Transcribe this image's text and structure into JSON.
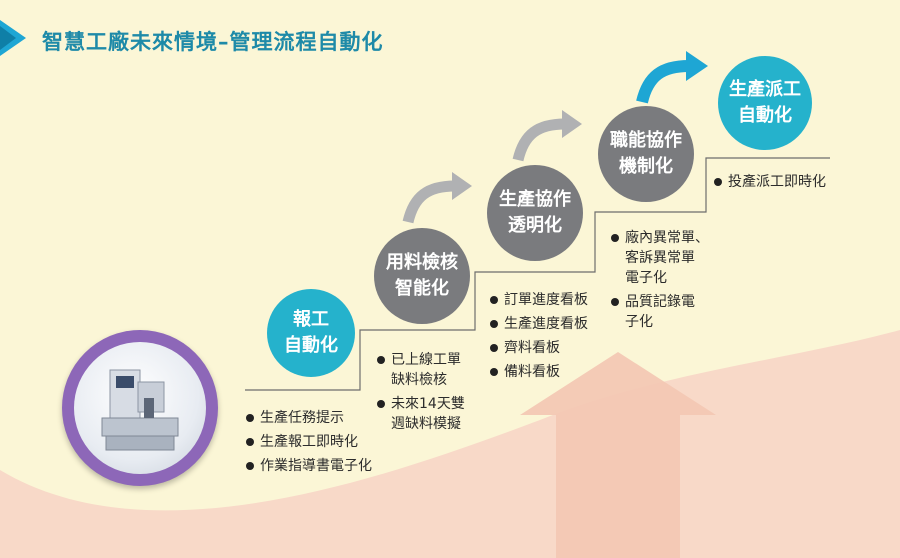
{
  "title": "智慧工廠未來情境–管理流程自動化",
  "colors": {
    "background": "#fbf6d6",
    "wave": "#f8d9c8",
    "title_text": "#1e8aa8",
    "step_gray": "#7a7b7e",
    "step_cyan": "#25b2cc",
    "arrow_gray": "#b0b1b3",
    "arrow_blue": "#1ea6d4",
    "machine_ring": "#8d67b8"
  },
  "icons": [
    "title-chevron-icon",
    "cnc-machine-icon"
  ],
  "steps": [
    {
      "label": "報工\n自動化",
      "color": "cyan",
      "bullets": [
        "生產任務提示",
        "生產報工即時化",
        "作業指導書電子化"
      ]
    },
    {
      "label": "用料檢核\n智能化",
      "color": "gray",
      "bullets": [
        "已上線工單\n缺料檢核",
        "未來14天雙\n週缺料模擬"
      ]
    },
    {
      "label": "生產協作\n透明化",
      "color": "gray",
      "bullets": [
        "訂單進度看板",
        "生產進度看板",
        "齊料看板",
        "備料看板"
      ]
    },
    {
      "label": "職能協作\n機制化",
      "color": "gray",
      "bullets": [
        "廠內異常單、\n客訴異常單\n電子化",
        "品質記錄電\n子化"
      ]
    },
    {
      "label": "生產派工\n自動化",
      "color": "cyan",
      "bullets": [
        "投產派工即時化"
      ]
    }
  ]
}
